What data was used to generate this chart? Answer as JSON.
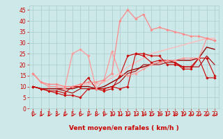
{
  "background_color": "#cce8e8",
  "grid_color": "#aacccc",
  "xlabel": "Vent moyen/en rafales ( km/h )",
  "xlabel_color": "#cc0000",
  "xlabel_fontsize": 6.5,
  "tick_color": "#cc0000",
  "tick_fontsize": 5.5,
  "ylim": [
    0,
    47
  ],
  "xlim": [
    -0.5,
    23.5
  ],
  "yticks": [
    0,
    5,
    10,
    15,
    20,
    25,
    30,
    35,
    40,
    45
  ],
  "xticks": [
    0,
    1,
    2,
    3,
    4,
    5,
    6,
    7,
    8,
    9,
    10,
    11,
    12,
    13,
    14,
    15,
    16,
    17,
    18,
    19,
    20,
    21,
    22,
    23
  ],
  "lines": [
    {
      "x": [
        0,
        1,
        2,
        3,
        4,
        5,
        6,
        7,
        8,
        9,
        10,
        11,
        12,
        13,
        14,
        15,
        16,
        17,
        18,
        19,
        20,
        21,
        22,
        23
      ],
      "y": [
        10,
        9,
        8,
        7,
        6,
        6,
        5,
        9,
        9,
        9,
        10,
        9,
        10,
        25,
        25,
        24,
        24,
        20,
        20,
        19,
        19,
        23,
        14,
        14
      ],
      "color": "#cc0000",
      "lw": 0.8,
      "marker": "D",
      "ms": 1.8
    },
    {
      "x": [
        0,
        1,
        2,
        3,
        4,
        5,
        6,
        7,
        8,
        9,
        10,
        11,
        12,
        13,
        14,
        15,
        16,
        17,
        18,
        19,
        20,
        21,
        22,
        23
      ],
      "y": [
        10,
        9,
        8,
        8,
        7,
        10,
        10,
        14,
        9,
        8,
        9,
        15,
        24,
        25,
        24,
        21,
        22,
        22,
        21,
        18,
        18,
        23,
        23,
        15
      ],
      "color": "#cc0000",
      "lw": 0.8,
      "marker": "D",
      "ms": 1.8
    },
    {
      "x": [
        0,
        1,
        2,
        3,
        4,
        5,
        6,
        7,
        8,
        9,
        10,
        11,
        12,
        13,
        14,
        15,
        16,
        17,
        18,
        19,
        20,
        21,
        22,
        23
      ],
      "y": [
        10,
        9,
        9,
        9,
        8,
        7,
        9,
        9,
        9,
        9,
        10,
        12,
        16,
        17,
        20,
        20,
        20,
        21,
        21,
        19,
        19,
        19,
        24,
        20
      ],
      "color": "#aa0000",
      "lw": 0.8,
      "marker": null,
      "ms": 0
    },
    {
      "x": [
        0,
        1,
        2,
        3,
        4,
        5,
        6,
        7,
        8,
        9,
        10,
        11,
        12,
        13,
        14,
        15,
        16,
        17,
        18,
        19,
        20,
        21,
        22,
        23
      ],
      "y": [
        16,
        12,
        10,
        10,
        9,
        25,
        27,
        24,
        9,
        13,
        26,
        16,
        15,
        16,
        18,
        20,
        21,
        22,
        22,
        23,
        23,
        23,
        32,
        31
      ],
      "color": "#ff9999",
      "lw": 0.9,
      "marker": "D",
      "ms": 1.8
    },
    {
      "x": [
        0,
        1,
        2,
        3,
        4,
        5,
        6,
        7,
        8,
        9,
        10,
        11,
        12,
        13,
        14,
        15,
        16,
        17,
        18,
        19,
        20,
        21,
        22,
        23
      ],
      "y": [
        10,
        9,
        9,
        9,
        9,
        9,
        10,
        10,
        9,
        10,
        12,
        14,
        17,
        18,
        19,
        20,
        21,
        22,
        22,
        22,
        22,
        23,
        28,
        27
      ],
      "color": "#990000",
      "lw": 1.0,
      "marker": null,
      "ms": 0
    },
    {
      "x": [
        0,
        1,
        2,
        3,
        4,
        5,
        6,
        7,
        8,
        9,
        10,
        11,
        12,
        13,
        14,
        15,
        16,
        17,
        18,
        19,
        20,
        21,
        22,
        23
      ],
      "y": [
        16,
        12,
        11,
        11,
        10,
        10,
        11,
        11,
        11,
        12,
        14,
        16,
        19,
        21,
        23,
        25,
        26,
        27,
        28,
        29,
        30,
        31,
        32,
        32
      ],
      "color": "#ffbbbb",
      "lw": 1.0,
      "marker": null,
      "ms": 0
    },
    {
      "x": [
        0,
        1,
        2,
        3,
        4,
        5,
        6,
        7,
        8,
        9,
        10,
        11,
        12,
        13,
        14,
        15,
        16,
        17,
        18,
        19,
        20,
        21,
        22,
        23
      ],
      "y": [
        16,
        12,
        11,
        11,
        10,
        10,
        11,
        12,
        12,
        13,
        16,
        40,
        45,
        41,
        43,
        36,
        37,
        36,
        35,
        34,
        33,
        33,
        32,
        31
      ],
      "color": "#ff8888",
      "lw": 0.9,
      "marker": "D",
      "ms": 1.8
    }
  ],
  "arrow_color": "#cc0000"
}
